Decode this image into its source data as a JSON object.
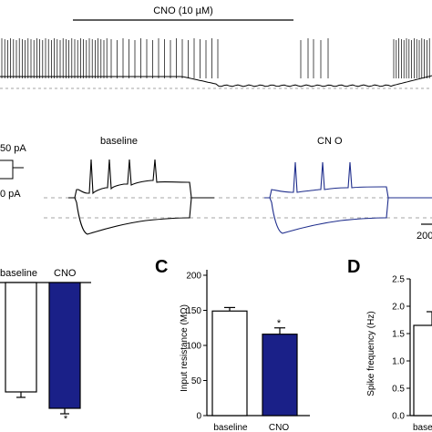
{
  "top_trace": {
    "label": "CNO  (10 µM)"
  },
  "middle": {
    "baseline_label": "baseline",
    "cno_label": "CN O",
    "current_top": "50 pA",
    "current_bottom": "0 pA",
    "scalebar": "200"
  },
  "panels": {
    "B": "",
    "C": "C",
    "D": "D"
  },
  "colors": {
    "baseline": "#000000",
    "cno": "#1e2d8c",
    "cno_bar": "#1a2088",
    "dashed": "#888888"
  },
  "chart_data": [
    {
      "panel": "B",
      "type": "bar",
      "categories": [
        "baseline",
        "CNO"
      ],
      "values": [
        -1.0,
        -1.15
      ],
      "significance": [
        "",
        "*"
      ],
      "title": "",
      "xlabel": "",
      "ylabel": ""
    },
    {
      "panel": "C",
      "type": "bar",
      "categories": [
        "baseline",
        "CNO"
      ],
      "values": [
        149,
        116
      ],
      "errors": [
        5,
        9
      ],
      "significance": [
        "",
        "*"
      ],
      "ylabel": "Input resistance (MΩ)",
      "ylim": [
        0,
        200
      ],
      "yticks": [
        "0",
        "50",
        "100",
        "150",
        "200"
      ]
    },
    {
      "panel": "D",
      "type": "bar",
      "categories": [
        "basel"
      ],
      "values": [
        1.65
      ],
      "errors": [
        0.25
      ],
      "ylabel": "Spike frequency (Hz)",
      "ylim": [
        0,
        2.5
      ],
      "yticks": [
        "0.0",
        "0.5",
        "1.0",
        "1.5",
        "2.0",
        "2.5"
      ]
    }
  ]
}
